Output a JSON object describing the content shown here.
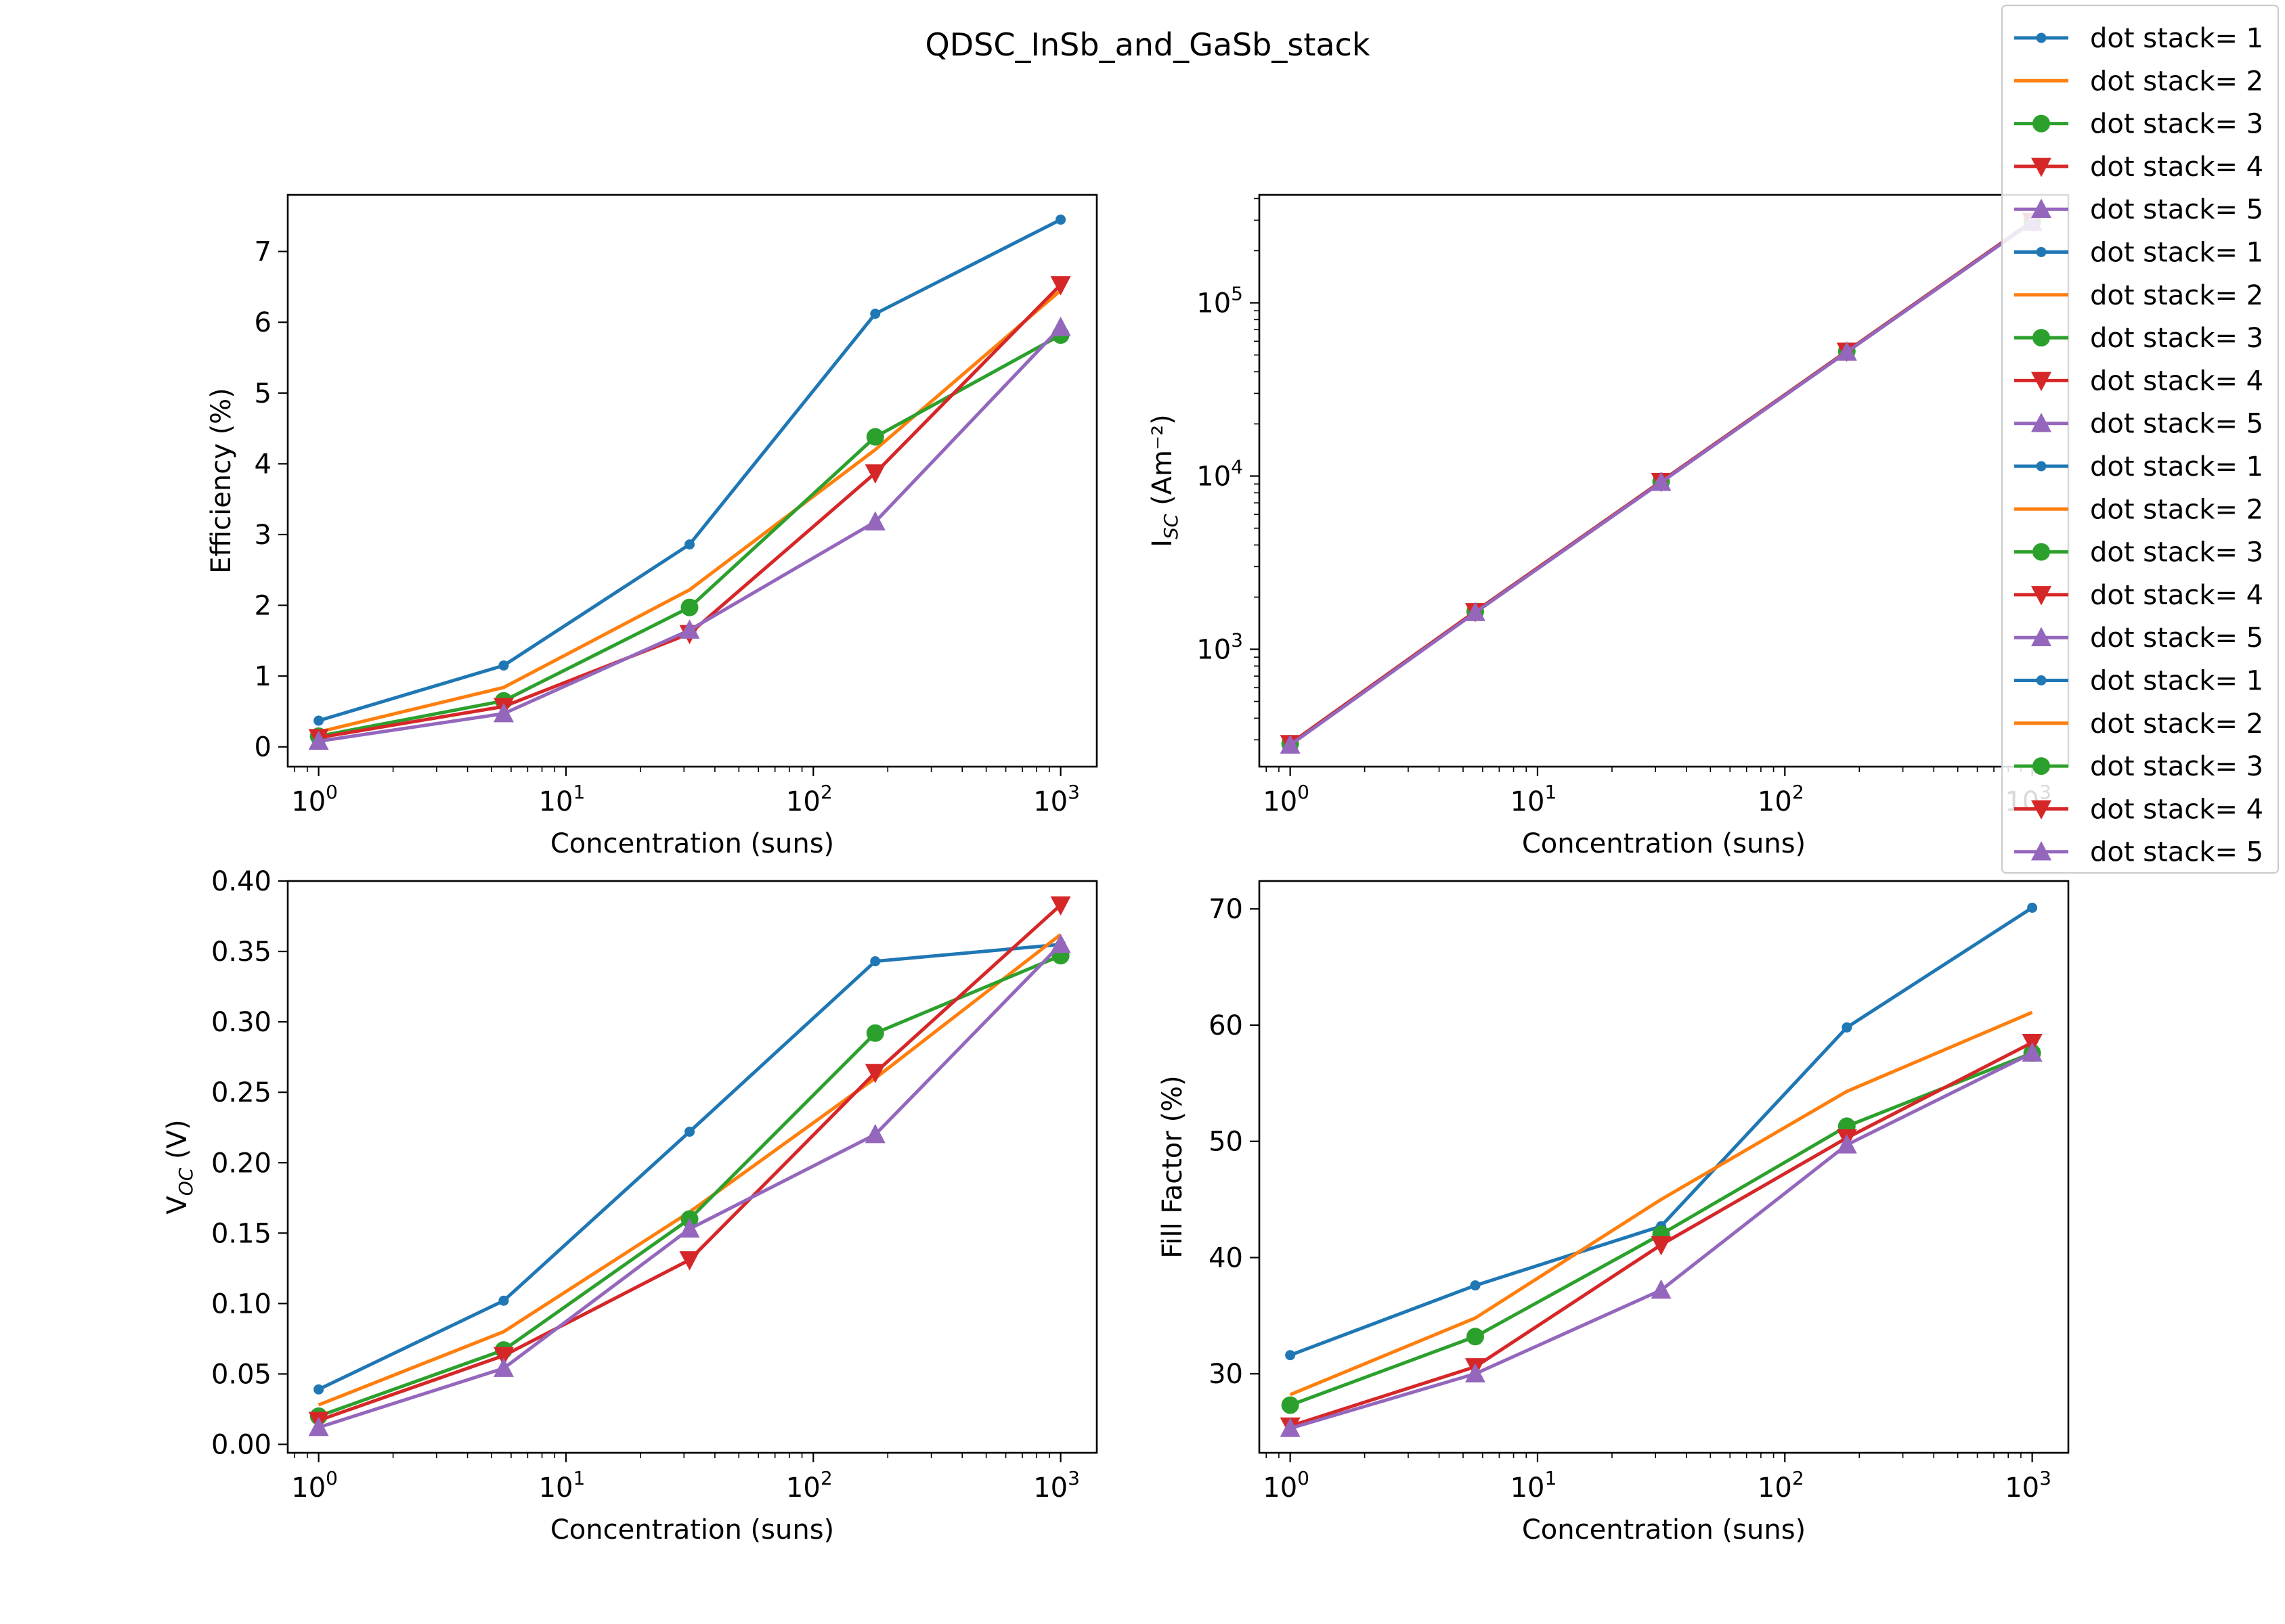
{
  "figure": {
    "title": "QDSC_InSb_and_GaSb_stack"
  },
  "colors": [
    "#1f77b4",
    "#ff7f0e",
    "#2ca02c",
    "#d62728",
    "#9467bd"
  ],
  "markers": [
    "dot",
    "none",
    "circle",
    "triangle-down",
    "triangle-up"
  ],
  "legend": {
    "entries": [
      "dot stack= 1",
      "dot stack= 2",
      "dot stack= 3",
      "dot stack= 4",
      "dot stack= 5",
      "dot stack= 1",
      "dot stack= 2",
      "dot stack= 3",
      "dot stack= 4",
      "dot stack= 5",
      "dot stack= 1",
      "dot stack= 2",
      "dot stack= 3",
      "dot stack= 4",
      "dot stack= 5",
      "dot stack= 1",
      "dot stack= 2",
      "dot stack= 3",
      "dot stack= 4",
      "dot stack= 5"
    ]
  },
  "chart_data": [
    {
      "type": "line",
      "xlabel": "Concentration (suns)",
      "ylabel_main": "Efficiency (%)",
      "ylabel_sub": "",
      "ylabel_tail": "",
      "xscale": "log",
      "yscale": "linear",
      "xlim": [
        0.75,
        1400
      ],
      "ylim": [
        -0.28,
        7.8
      ],
      "xticks": [
        1,
        10,
        100,
        1000
      ],
      "xticklabels": [
        [
          "10",
          "0"
        ],
        [
          "10",
          "1"
        ],
        [
          "10",
          "2"
        ],
        [
          "10",
          "3"
        ]
      ],
      "yticks": [
        0,
        1,
        2,
        3,
        4,
        5,
        6,
        7
      ],
      "yticklabels": [
        [
          "0"
        ],
        [
          "1"
        ],
        [
          "2"
        ],
        [
          "3"
        ],
        [
          "4"
        ],
        [
          "5"
        ],
        [
          "6"
        ],
        [
          "7"
        ]
      ],
      "x": [
        1,
        5.6,
        31.6,
        178,
        1000
      ],
      "series": [
        {
          "name": "dot stack= 1",
          "values": [
            0.37,
            1.15,
            2.86,
            6.12,
            7.45
          ]
        },
        {
          "name": "dot stack= 2",
          "values": [
            0.21,
            0.84,
            2.22,
            4.2,
            6.45
          ]
        },
        {
          "name": "dot stack= 3",
          "values": [
            0.15,
            0.65,
            1.97,
            4.38,
            5.82
          ]
        },
        {
          "name": "dot stack= 4",
          "values": [
            0.13,
            0.57,
            1.6,
            3.87,
            6.53
          ]
        },
        {
          "name": "dot stack= 5",
          "values": [
            0.08,
            0.47,
            1.65,
            3.18,
            5.93
          ]
        }
      ]
    },
    {
      "type": "line",
      "xlabel": "Concentration (suns)",
      "ylabel_main": "I",
      "ylabel_sub": "SC",
      "ylabel_tail": " (Am⁻²)",
      "xscale": "log",
      "yscale": "log",
      "xlim": [
        0.75,
        1400
      ],
      "ylim": [
        210,
        420000
      ],
      "xticks": [
        1,
        10,
        100,
        1000
      ],
      "xticklabels": [
        [
          "10",
          "0"
        ],
        [
          "10",
          "1"
        ],
        [
          "10",
          "2"
        ],
        [
          "10",
          "3"
        ]
      ],
      "yticks": [
        1000,
        10000,
        100000
      ],
      "yticklabels": [
        [
          "10",
          "3"
        ],
        [
          "10",
          "4"
        ],
        [
          "10",
          "5"
        ]
      ],
      "x": [
        1,
        5.6,
        31.6,
        178,
        1000
      ],
      "series": [
        {
          "name": "dot stack= 1",
          "values": [
            285,
            1650,
            9300,
            52500,
            295000
          ]
        },
        {
          "name": "dot stack= 2",
          "values": [
            285,
            1650,
            9300,
            52500,
            295000
          ]
        },
        {
          "name": "dot stack= 3",
          "values": [
            285,
            1650,
            9300,
            52500,
            295000
          ]
        },
        {
          "name": "dot stack= 4",
          "values": [
            285,
            1650,
            9300,
            52500,
            295000
          ]
        },
        {
          "name": "dot stack= 5",
          "values": [
            280,
            1630,
            9200,
            52000,
            292000
          ]
        }
      ]
    },
    {
      "type": "line",
      "xlabel": "Concentration (suns)",
      "ylabel_main": "V",
      "ylabel_sub": "OC",
      "ylabel_tail": " (V)",
      "xscale": "log",
      "yscale": "linear",
      "xlim": [
        0.75,
        1400
      ],
      "ylim": [
        -0.006,
        0.4
      ],
      "xticks": [
        1,
        10,
        100,
        1000
      ],
      "xticklabels": [
        [
          "10",
          "0"
        ],
        [
          "10",
          "1"
        ],
        [
          "10",
          "2"
        ],
        [
          "10",
          "3"
        ]
      ],
      "yticks": [
        0,
        0.05,
        0.1,
        0.15,
        0.2,
        0.25,
        0.3,
        0.35,
        0.4
      ],
      "yticklabels": [
        [
          "0.00"
        ],
        [
          "0.05"
        ],
        [
          "0.10"
        ],
        [
          "0.15"
        ],
        [
          "0.20"
        ],
        [
          "0.25"
        ],
        [
          "0.30"
        ],
        [
          "0.35"
        ],
        [
          "0.40"
        ]
      ],
      "x": [
        1,
        5.6,
        31.6,
        178,
        1000
      ],
      "series": [
        {
          "name": "dot stack= 1",
          "values": [
            0.039,
            0.102,
            0.222,
            0.343,
            0.355
          ]
        },
        {
          "name": "dot stack= 2",
          "values": [
            0.028,
            0.08,
            0.165,
            0.26,
            0.362
          ]
        },
        {
          "name": "dot stack= 3",
          "values": [
            0.02,
            0.067,
            0.16,
            0.292,
            0.347
          ]
        },
        {
          "name": "dot stack= 4",
          "values": [
            0.017,
            0.063,
            0.131,
            0.264,
            0.383
          ]
        },
        {
          "name": "dot stack= 5",
          "values": [
            0.012,
            0.054,
            0.153,
            0.22,
            0.355
          ]
        }
      ]
    },
    {
      "type": "line",
      "xlabel": "Concentration (suns)",
      "ylabel_main": "Fill Factor (%)",
      "ylabel_sub": "",
      "ylabel_tail": "",
      "xscale": "log",
      "yscale": "linear",
      "xlim": [
        0.75,
        1400
      ],
      "ylim": [
        23.2,
        72.4
      ],
      "xticks": [
        1,
        10,
        100,
        1000
      ],
      "xticklabels": [
        [
          "10",
          "0"
        ],
        [
          "10",
          "1"
        ],
        [
          "10",
          "2"
        ],
        [
          "10",
          "3"
        ]
      ],
      "yticks": [
        30,
        40,
        50,
        60,
        70
      ],
      "yticklabels": [
        [
          "30"
        ],
        [
          "40"
        ],
        [
          "50"
        ],
        [
          "60"
        ],
        [
          "70"
        ]
      ],
      "x": [
        1,
        5.6,
        31.6,
        178,
        1000
      ],
      "series": [
        {
          "name": "dot stack= 1",
          "values": [
            31.6,
            37.6,
            42.7,
            59.8,
            70.1
          ]
        },
        {
          "name": "dot stack= 2",
          "values": [
            28.2,
            34.8,
            45.0,
            54.3,
            61.1
          ]
        },
        {
          "name": "dot stack= 3",
          "values": [
            27.3,
            33.2,
            42.0,
            51.3,
            57.6
          ]
        },
        {
          "name": "dot stack= 4",
          "values": [
            25.5,
            30.6,
            41.1,
            50.3,
            58.5
          ]
        },
        {
          "name": "dot stack= 5",
          "values": [
            25.3,
            30.0,
            37.2,
            49.7,
            57.6
          ]
        }
      ]
    }
  ]
}
